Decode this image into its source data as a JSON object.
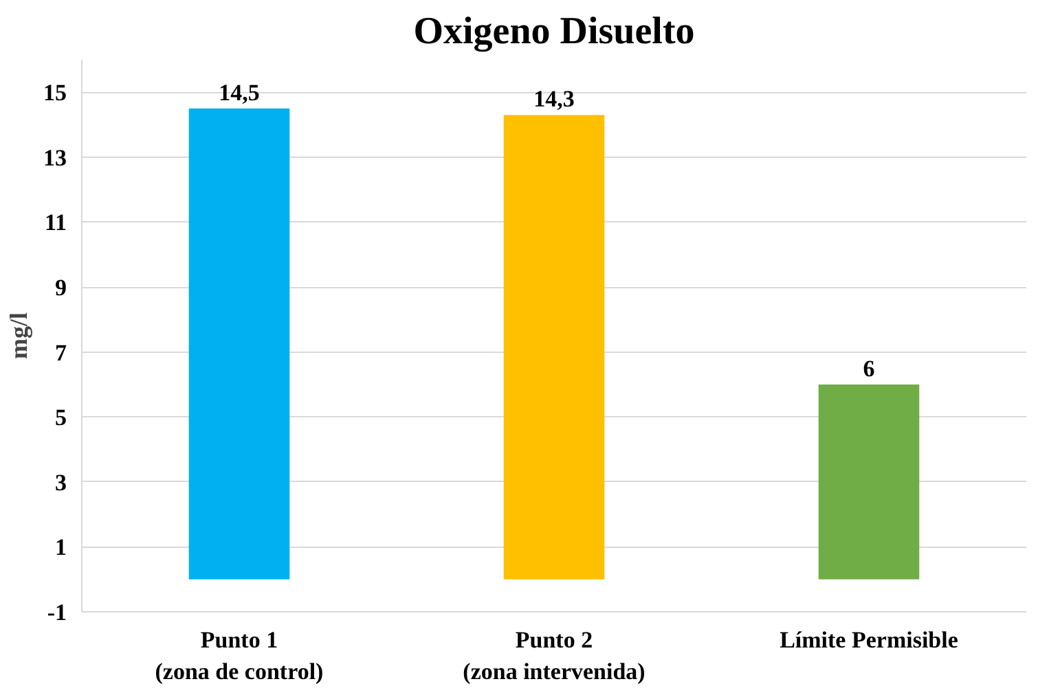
{
  "chart_data": {
    "type": "bar",
    "title": "Oxigeno Disuelto",
    "ylabel": "mg/l",
    "categories": [
      "Punto 1\n(zona de control)",
      "Punto 2\n(zona intervenida)",
      "Límite Permisible"
    ],
    "values": [
      14.5,
      14.3,
      6
    ],
    "colors": [
      "#00b0f0",
      "#ffc000",
      "#70ad47"
    ],
    "value_labels": [
      "14,5",
      "14,3",
      "6"
    ],
    "ylim": [
      -1,
      16
    ],
    "yticks": [
      -1,
      1,
      3,
      5,
      7,
      9,
      11,
      13,
      15
    ],
    "grid": "y"
  }
}
